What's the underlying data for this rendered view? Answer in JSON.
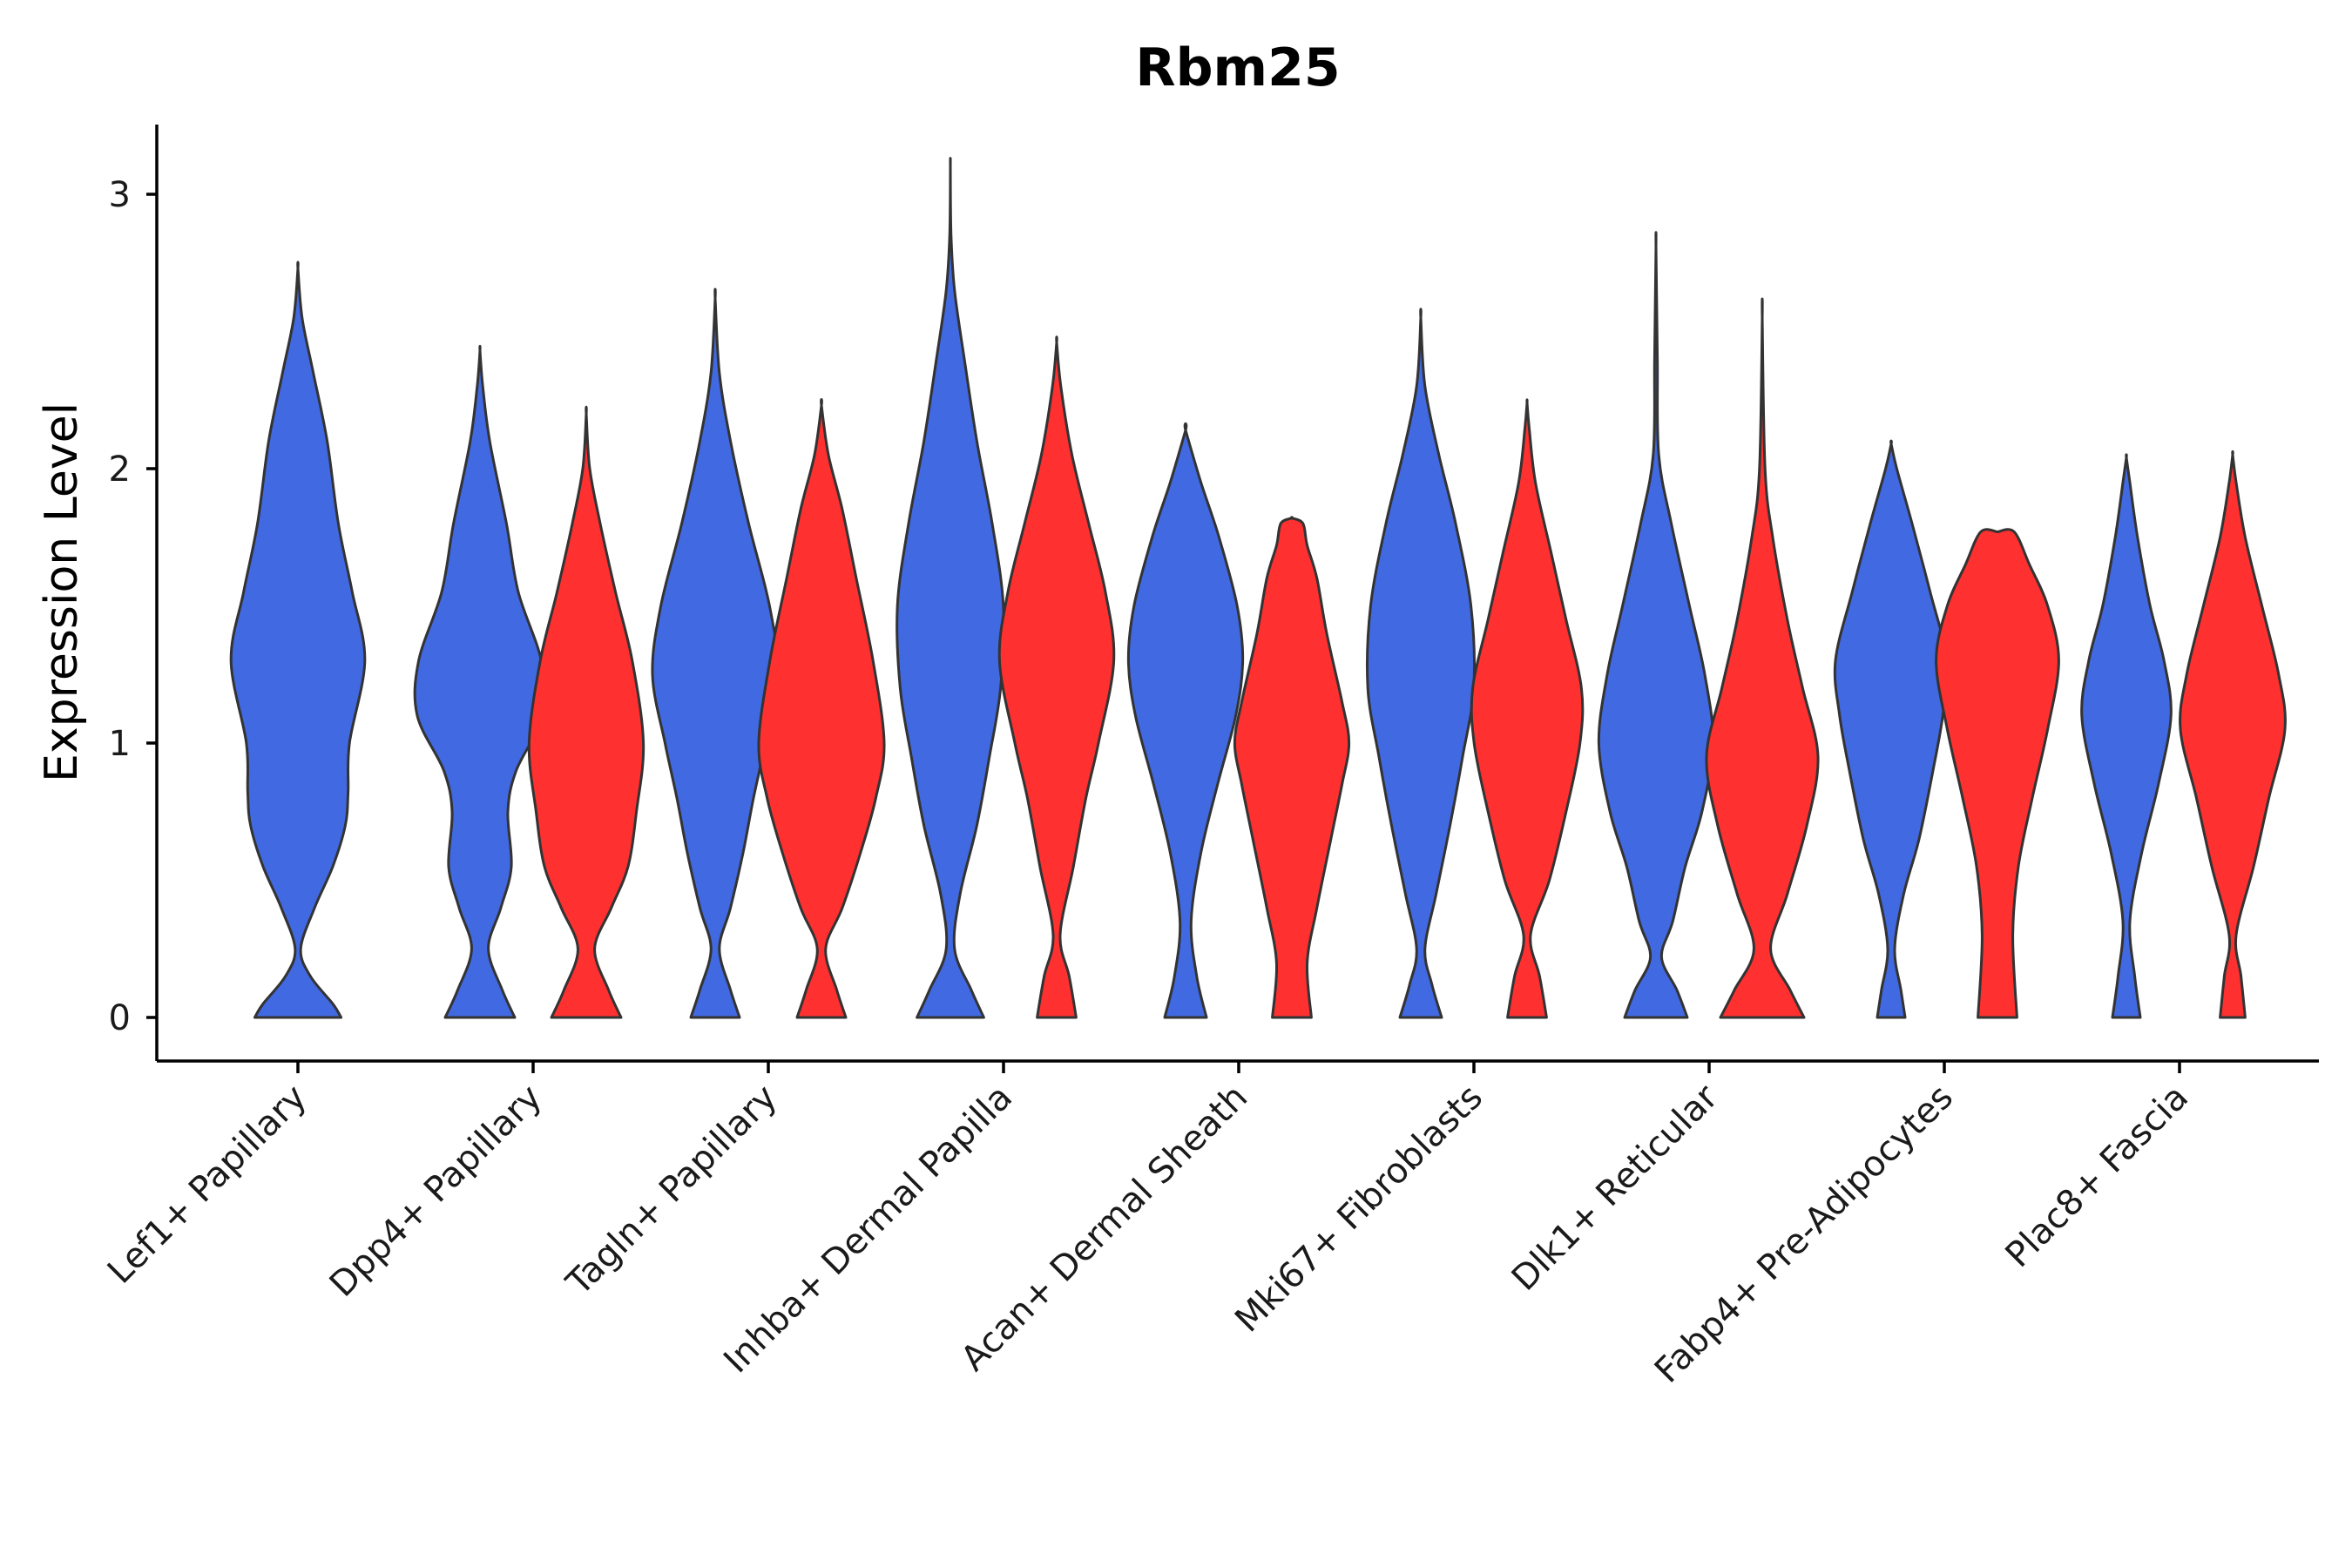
{
  "chart_data": {
    "type": "violin",
    "title": "Rbm25",
    "xlabel": "",
    "ylabel": "Expression Level",
    "ylim": [
      -0.16,
      3.25
    ],
    "yticks": [
      "0",
      "1",
      "2",
      "3"
    ],
    "categories": [
      "Lef1+ Papillary",
      "Dpp4+ Papillary",
      "Tagln+ Papillary",
      "Inhba+ Dermal Papilla",
      "Acan+ Dermal Sheath",
      "Mki67+ Fibroblasts",
      "Dlk1+ Reticular",
      "Fabp4+ Pre-Adipocytes",
      "Plac8+ Fascia"
    ],
    "colors": {
      "group_1": "#4169E1",
      "group_2": "#FF3030",
      "outline": "#333333"
    },
    "series": [
      {
        "name": "group_1",
        "color": "#4169E1",
        "violins": [
          {
            "category": "Lef1+ Papillary",
            "profile": [
              [
                0,
                0.62
              ],
              [
                0.05,
                0.5
              ],
              [
                0.15,
                0.18
              ],
              [
                0.25,
                0.04
              ],
              [
                0.4,
                0.24
              ],
              [
                0.55,
                0.5
              ],
              [
                0.7,
                0.68
              ],
              [
                0.82,
                0.72
              ],
              [
                1.0,
                0.74
              ],
              [
                1.3,
                0.96
              ],
              [
                1.55,
                0.78
              ],
              [
                1.8,
                0.58
              ],
              [
                2.1,
                0.42
              ],
              [
                2.35,
                0.22
              ],
              [
                2.55,
                0.06
              ],
              [
                2.73,
                0.0
              ]
            ]
          },
          {
            "category": "Dpp4+ Papillary",
            "profile": [
              [
                0,
                0.5
              ],
              [
                0.1,
                0.32
              ],
              [
                0.25,
                0.12
              ],
              [
                0.4,
                0.3
              ],
              [
                0.55,
                0.45
              ],
              [
                0.75,
                0.4
              ],
              [
                0.9,
                0.52
              ],
              [
                1.1,
                0.9
              ],
              [
                1.3,
                0.88
              ],
              [
                1.55,
                0.55
              ],
              [
                1.8,
                0.38
              ],
              [
                2.1,
                0.14
              ],
              [
                2.3,
                0.04
              ],
              [
                2.43,
                0.0
              ]
            ]
          },
          {
            "category": "Tagln+ Papillary",
            "profile": [
              [
                0,
                0.35
              ],
              [
                0.1,
                0.22
              ],
              [
                0.25,
                0.06
              ],
              [
                0.4,
                0.22
              ],
              [
                0.6,
                0.4
              ],
              [
                0.8,
                0.55
              ],
              [
                1.0,
                0.72
              ],
              [
                1.25,
                0.9
              ],
              [
                1.5,
                0.78
              ],
              [
                1.8,
                0.48
              ],
              [
                2.1,
                0.22
              ],
              [
                2.35,
                0.06
              ],
              [
                2.62,
                0.0
              ]
            ]
          },
          {
            "category": "Inhba+ Dermal Papilla",
            "profile": [
              [
                0,
                0.48
              ],
              [
                0.1,
                0.3
              ],
              [
                0.25,
                0.06
              ],
              [
                0.45,
                0.14
              ],
              [
                0.7,
                0.38
              ],
              [
                0.95,
                0.56
              ],
              [
                1.2,
                0.72
              ],
              [
                1.5,
                0.76
              ],
              [
                1.8,
                0.6
              ],
              [
                2.1,
                0.38
              ],
              [
                2.4,
                0.2
              ],
              [
                2.65,
                0.06
              ],
              [
                2.85,
                0.01
              ],
              [
                3.1,
                0.0
              ]
            ]
          },
          {
            "category": "Acan+ Dermal Sheath",
            "profile": [
              [
                0,
                0.3
              ],
              [
                0.15,
                0.16
              ],
              [
                0.35,
                0.08
              ],
              [
                0.6,
                0.22
              ],
              [
                0.85,
                0.46
              ],
              [
                1.1,
                0.72
              ],
              [
                1.3,
                0.82
              ],
              [
                1.5,
                0.74
              ],
              [
                1.75,
                0.48
              ],
              [
                1.95,
                0.22
              ],
              [
                2.14,
                0.0
              ]
            ]
          },
          {
            "category": "Mki67+ Fibroblasts",
            "profile": [
              [
                0,
                0.3
              ],
              [
                0.12,
                0.16
              ],
              [
                0.25,
                0.06
              ],
              [
                0.45,
                0.22
              ],
              [
                0.7,
                0.42
              ],
              [
                0.95,
                0.6
              ],
              [
                1.2,
                0.76
              ],
              [
                1.5,
                0.72
              ],
              [
                1.8,
                0.5
              ],
              [
                2.05,
                0.26
              ],
              [
                2.3,
                0.06
              ],
              [
                2.55,
                0.0
              ]
            ]
          },
          {
            "category": "Dlk1+ Reticular",
            "profile": [
              [
                0,
                0.45
              ],
              [
                0.1,
                0.3
              ],
              [
                0.22,
                0.08
              ],
              [
                0.35,
                0.24
              ],
              [
                0.55,
                0.42
              ],
              [
                0.75,
                0.66
              ],
              [
                1.0,
                0.82
              ],
              [
                1.25,
                0.7
              ],
              [
                1.5,
                0.48
              ],
              [
                1.8,
                0.22
              ],
              [
                2.05,
                0.04
              ],
              [
                2.4,
                0.02
              ],
              [
                2.81,
                0.0
              ]
            ]
          },
          {
            "category": "Fabp4+ Pre-Adipocytes",
            "profile": [
              [
                0,
                0.2
              ],
              [
                0.1,
                0.14
              ],
              [
                0.25,
                0.05
              ],
              [
                0.45,
                0.18
              ],
              [
                0.65,
                0.4
              ],
              [
                0.9,
                0.6
              ],
              [
                1.1,
                0.74
              ],
              [
                1.3,
                0.8
              ],
              [
                1.55,
                0.56
              ],
              [
                1.8,
                0.3
              ],
              [
                2.0,
                0.08
              ],
              [
                2.09,
                0.0
              ]
            ]
          },
          {
            "category": "Plac8+ Fascia",
            "profile": [
              [
                0,
                0.2
              ],
              [
                0.15,
                0.12
              ],
              [
                0.35,
                0.05
              ],
              [
                0.6,
                0.22
              ],
              [
                0.85,
                0.46
              ],
              [
                1.1,
                0.64
              ],
              [
                1.3,
                0.54
              ],
              [
                1.5,
                0.34
              ],
              [
                1.75,
                0.16
              ],
              [
                1.95,
                0.05
              ],
              [
                2.04,
                0.0
              ]
            ]
          }
        ]
      },
      {
        "name": "group_2",
        "color": "#FF3030",
        "violins": [
          {
            "category": "Dpp4+ Papillary",
            "profile": [
              [
                0,
                0.5
              ],
              [
                0.1,
                0.32
              ],
              [
                0.25,
                0.12
              ],
              [
                0.4,
                0.36
              ],
              [
                0.55,
                0.6
              ],
              [
                0.75,
                0.72
              ],
              [
                1.0,
                0.82
              ],
              [
                1.3,
                0.66
              ],
              [
                1.55,
                0.42
              ],
              [
                1.8,
                0.2
              ],
              [
                2.0,
                0.05
              ],
              [
                2.2,
                0.0
              ]
            ]
          },
          {
            "category": "Tagln+ Papillary",
            "profile": [
              [
                0,
                0.35
              ],
              [
                0.1,
                0.22
              ],
              [
                0.25,
                0.06
              ],
              [
                0.4,
                0.3
              ],
              [
                0.6,
                0.56
              ],
              [
                0.8,
                0.78
              ],
              [
                1.0,
                0.9
              ],
              [
                1.3,
                0.74
              ],
              [
                1.6,
                0.5
              ],
              [
                1.85,
                0.3
              ],
              [
                2.05,
                0.1
              ],
              [
                2.23,
                0.0
              ]
            ]
          },
          {
            "category": "Inhba+ Dermal Papilla",
            "profile": [
              [
                0,
                0.28
              ],
              [
                0.15,
                0.18
              ],
              [
                0.3,
                0.05
              ],
              [
                0.55,
                0.24
              ],
              [
                0.8,
                0.42
              ],
              [
                1.0,
                0.6
              ],
              [
                1.3,
                0.82
              ],
              [
                1.55,
                0.7
              ],
              [
                1.8,
                0.46
              ],
              [
                2.05,
                0.22
              ],
              [
                2.3,
                0.06
              ],
              [
                2.46,
                0.0
              ]
            ]
          },
          {
            "category": "Acan+ Dermal Sheath",
            "profile": [
              [
                0,
                0.28
              ],
              [
                0.2,
                0.22
              ],
              [
                0.4,
                0.36
              ],
              [
                0.65,
                0.56
              ],
              [
                0.85,
                0.72
              ],
              [
                1.0,
                0.82
              ],
              [
                1.15,
                0.72
              ],
              [
                1.4,
                0.5
              ],
              [
                1.6,
                0.36
              ],
              [
                1.72,
                0.22
              ],
              [
                1.8,
                0.16
              ],
              [
                1.82,
                0.0
              ]
            ]
          },
          {
            "category": "Mki67+ Fibroblasts",
            "profile": [
              [
                0,
                0.28
              ],
              [
                0.15,
                0.18
              ],
              [
                0.3,
                0.05
              ],
              [
                0.5,
                0.32
              ],
              [
                0.75,
                0.56
              ],
              [
                1.0,
                0.76
              ],
              [
                1.2,
                0.78
              ],
              [
                1.45,
                0.56
              ],
              [
                1.7,
                0.34
              ],
              [
                1.95,
                0.12
              ],
              [
                2.15,
                0.03
              ],
              [
                2.24,
                0.0
              ]
            ]
          },
          {
            "category": "Dlk1+ Reticular",
            "profile": [
              [
                0,
                0.6
              ],
              [
                0.1,
                0.4
              ],
              [
                0.25,
                0.12
              ],
              [
                0.45,
                0.36
              ],
              [
                0.7,
                0.64
              ],
              [
                0.95,
                0.8
              ],
              [
                1.2,
                0.58
              ],
              [
                1.45,
                0.36
              ],
              [
                1.75,
                0.15
              ],
              [
                2.0,
                0.04
              ],
              [
                2.55,
                0.0
              ]
            ]
          },
          {
            "category": "Fabp4+ Pre-Adipocytes",
            "profile": [
              [
                0,
                0.28
              ],
              [
                0.3,
                0.22
              ],
              [
                0.55,
                0.3
              ],
              [
                0.8,
                0.5
              ],
              [
                1.05,
                0.72
              ],
              [
                1.3,
                0.88
              ],
              [
                1.5,
                0.72
              ],
              [
                1.65,
                0.46
              ],
              [
                1.77,
                0.24
              ],
              [
                1.77,
                0.0
              ]
            ]
          },
          {
            "category": "Plac8+ Fascia",
            "profile": [
              [
                0,
                0.18
              ],
              [
                0.15,
                0.12
              ],
              [
                0.3,
                0.05
              ],
              [
                0.55,
                0.3
              ],
              [
                0.8,
                0.52
              ],
              [
                1.05,
                0.75
              ],
              [
                1.25,
                0.66
              ],
              [
                1.5,
                0.42
              ],
              [
                1.75,
                0.18
              ],
              [
                1.95,
                0.05
              ],
              [
                2.05,
                0.0
              ]
            ]
          }
        ]
      }
    ]
  }
}
